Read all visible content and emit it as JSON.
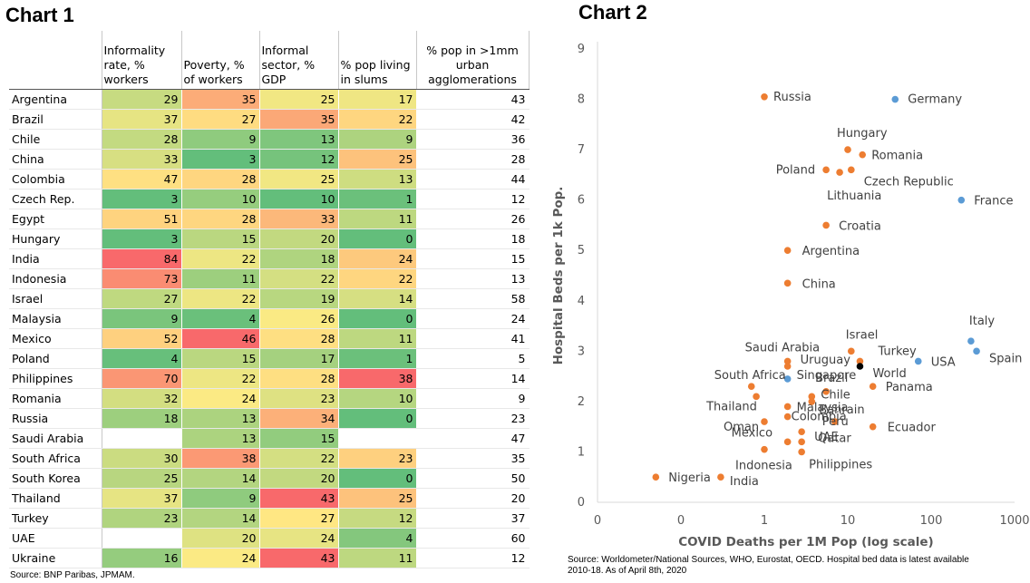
{
  "titles": {
    "chart1": "Chart 1",
    "chart2": "Chart 2"
  },
  "table": {
    "headers": [
      "",
      "Informality rate, % workers",
      "Poverty, % of workers",
      "Informal sector, % GDP",
      "% pop living in slums",
      "% pop in >1mm urban agglomerations"
    ],
    "rows": [
      {
        "country": "Argentina",
        "values": [
          29,
          35,
          25,
          17,
          43
        ]
      },
      {
        "country": "Brazil",
        "values": [
          37,
          27,
          35,
          22,
          42
        ]
      },
      {
        "country": "Chile",
        "values": [
          28,
          9,
          13,
          9,
          36
        ]
      },
      {
        "country": "China",
        "values": [
          33,
          3,
          12,
          25,
          28
        ]
      },
      {
        "country": "Colombia",
        "values": [
          47,
          28,
          25,
          13,
          44
        ]
      },
      {
        "country": "Czech Rep.",
        "values": [
          3,
          10,
          10,
          1,
          12
        ]
      },
      {
        "country": "Egypt",
        "values": [
          51,
          28,
          33,
          11,
          26
        ]
      },
      {
        "country": "Hungary",
        "values": [
          3,
          15,
          20,
          0,
          18
        ]
      },
      {
        "country": "India",
        "values": [
          84,
          22,
          18,
          24,
          15
        ]
      },
      {
        "country": "Indonesia",
        "values": [
          73,
          11,
          22,
          22,
          13
        ]
      },
      {
        "country": "Israel",
        "values": [
          27,
          22,
          19,
          14,
          58
        ]
      },
      {
        "country": "Malaysia",
        "values": [
          9,
          4,
          26,
          0,
          24
        ]
      },
      {
        "country": "Mexico",
        "values": [
          52,
          46,
          28,
          11,
          41
        ]
      },
      {
        "country": "Poland",
        "values": [
          4,
          15,
          17,
          1,
          5
        ]
      },
      {
        "country": "Philippines",
        "values": [
          70,
          22,
          28,
          38,
          14
        ]
      },
      {
        "country": "Romania",
        "values": [
          32,
          24,
          23,
          10,
          9
        ]
      },
      {
        "country": "Russia",
        "values": [
          18,
          13,
          34,
          0,
          23
        ]
      },
      {
        "country": "Saudi Arabia",
        "values": [
          null,
          13,
          15,
          null,
          47
        ]
      },
      {
        "country": "South Africa",
        "values": [
          30,
          38,
          22,
          23,
          35
        ]
      },
      {
        "country": "South Korea",
        "values": [
          25,
          14,
          20,
          0,
          50
        ]
      },
      {
        "country": "Thailand",
        "values": [
          37,
          9,
          43,
          25,
          20
        ]
      },
      {
        "country": "Turkey",
        "values": [
          23,
          14,
          27,
          12,
          37
        ]
      },
      {
        "country": "UAE",
        "values": [
          null,
          20,
          24,
          4,
          60
        ]
      },
      {
        "country": "Ukraine",
        "values": [
          16,
          24,
          43,
          11,
          12
        ]
      }
    ],
    "source": "Source: BNP Paribas, JPMAM."
  },
  "colors": {
    "low": "#63be7b",
    "mid": "#ffeb84",
    "high": "#f8696b",
    "orange_point": "#ed7d31",
    "blue_point": "#5b9bd5",
    "black_point": "#000000"
  },
  "chart_data": {
    "type": "scatter",
    "xlabel": "COVID Deaths per 1M Pop (log scale)",
    "ylabel": "Hospital Beds per 1k Pop.",
    "x_scale": "log",
    "x_ticks": [
      "0",
      "0",
      "1",
      "10",
      "100",
      "1000"
    ],
    "x_tick_values": [
      0.01,
      0.1,
      1,
      10,
      100,
      1000
    ],
    "xlim": [
      0.01,
      1000
    ],
    "ylim": [
      0,
      9
    ],
    "y_ticks": [
      0,
      1,
      2,
      3,
      4,
      5,
      6,
      7,
      8,
      9
    ],
    "grid": false,
    "source": "Source: Worldometer/National Sources, WHO, Eurostat, OECD. Hospital bed data is latest available 2010-18. As of April 8th, 2020",
    "points": [
      {
        "label": "Russia",
        "x": 1.0,
        "y": 8.05,
        "group": "orange"
      },
      {
        "label": "Germany",
        "x": 37,
        "y": 8.0,
        "group": "blue"
      },
      {
        "label": "Hungary",
        "x": 10,
        "y": 7.0,
        "group": "orange"
      },
      {
        "label": "Romania",
        "x": 15,
        "y": 6.9,
        "group": "orange"
      },
      {
        "label": "Poland",
        "x": 5.5,
        "y": 6.6,
        "group": "orange"
      },
      {
        "label": "Czech Republic",
        "x": 11,
        "y": 6.6,
        "group": "orange"
      },
      {
        "label": "Lithuania",
        "x": 8,
        "y": 6.55,
        "group": "orange"
      },
      {
        "label": "France",
        "x": 230,
        "y": 6.0,
        "group": "blue"
      },
      {
        "label": "Croatia",
        "x": 5.5,
        "y": 5.5,
        "group": "orange"
      },
      {
        "label": "Argentina",
        "x": 1.9,
        "y": 5.0,
        "group": "orange"
      },
      {
        "label": "China",
        "x": 1.9,
        "y": 4.35,
        "group": "orange"
      },
      {
        "label": "Italy",
        "x": 300,
        "y": 3.2,
        "group": "blue"
      },
      {
        "label": "Spain",
        "x": 350,
        "y": 3.0,
        "group": "blue"
      },
      {
        "label": "Israel",
        "x": 11,
        "y": 3.0,
        "group": "orange"
      },
      {
        "label": "Turkey",
        "x": 14,
        "y": 2.8,
        "group": "orange"
      },
      {
        "label": "World",
        "x": 14,
        "y": 2.7,
        "group": "black"
      },
      {
        "label": "USA",
        "x": 70,
        "y": 2.8,
        "group": "blue"
      },
      {
        "label": "Saudi Arabia",
        "x": 1.9,
        "y": 2.8,
        "group": "orange"
      },
      {
        "label": "Uruguay",
        "x": 1.9,
        "y": 2.7,
        "group": "orange"
      },
      {
        "label": "Singapore",
        "x": 1.9,
        "y": 2.45,
        "group": "blue"
      },
      {
        "label": "South Africa",
        "x": 0.7,
        "y": 2.3,
        "group": "orange"
      },
      {
        "label": "Brazil",
        "x": 5.5,
        "y": 2.2,
        "group": "orange"
      },
      {
        "label": "Panama",
        "x": 20,
        "y": 2.3,
        "group": "orange"
      },
      {
        "label": "Chile",
        "x": 3.7,
        "y": 2.1,
        "group": "orange"
      },
      {
        "label": "Thailand",
        "x": 0.8,
        "y": 2.1,
        "group": "orange"
      },
      {
        "label": "Malaysia",
        "x": 1.9,
        "y": 1.9,
        "group": "orange"
      },
      {
        "label": "Bahrain",
        "x": 3.7,
        "y": 2.0,
        "group": "orange"
      },
      {
        "label": "Oman",
        "x": 1.0,
        "y": 1.6,
        "group": "orange"
      },
      {
        "label": "Colombia",
        "x": 1.9,
        "y": 1.7,
        "group": "orange"
      },
      {
        "label": "Peru",
        "x": 7,
        "y": 1.6,
        "group": "orange"
      },
      {
        "label": "Ecuador",
        "x": 20,
        "y": 1.5,
        "group": "orange"
      },
      {
        "label": "UAE",
        "x": 2.8,
        "y": 1.4,
        "group": "orange"
      },
      {
        "label": "Mexico",
        "x": 1.9,
        "y": 1.2,
        "group": "orange"
      },
      {
        "label": "Qatar",
        "x": 2.8,
        "y": 1.2,
        "group": "orange"
      },
      {
        "label": "Indonesia",
        "x": 1.0,
        "y": 1.05,
        "group": "orange"
      },
      {
        "label": "Philippines",
        "x": 2.8,
        "y": 1.0,
        "group": "orange"
      },
      {
        "label": "Nigeria",
        "x": 0.05,
        "y": 0.5,
        "group": "orange"
      },
      {
        "label": "India",
        "x": 0.3,
        "y": 0.5,
        "group": "orange"
      }
    ]
  }
}
